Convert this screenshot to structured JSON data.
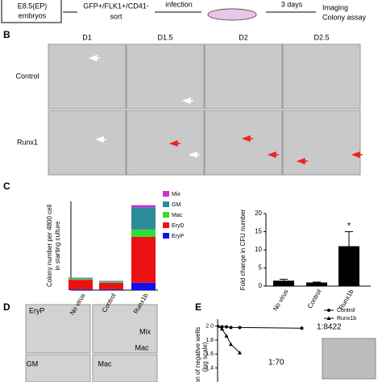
{
  "flow": {
    "source": [
      "E8.5(EP)",
      "embryos"
    ],
    "sort": [
      "GFP+/FLK1+/CD41-",
      "sort"
    ],
    "infection": "infection",
    "culture": "3 days",
    "readout": [
      "Imaging",
      "Colony assay"
    ]
  },
  "panels": {
    "b": "B",
    "c": "C",
    "d": "D",
    "e": "E"
  },
  "panel_b": {
    "columns": [
      "D1",
      "D1.5",
      "D2",
      "D2.5"
    ],
    "rows": [
      "Control",
      "Runx1"
    ]
  },
  "chart_data": [
    {
      "type": "stacked_bar",
      "ylabel": [
        "Colony number per 4800 cell",
        "in starting culture"
      ],
      "categories": [
        "No virus",
        "Control",
        "Runx1b"
      ],
      "ylim": [
        0,
        600
      ],
      "series": [
        {
          "name": "Mix",
          "color": "#cc33cc",
          "values": [
            2,
            2,
            15
          ]
        },
        {
          "name": "GM",
          "color": "#2e8b9a",
          "values": [
            5,
            5,
            150
          ]
        },
        {
          "name": "Mac",
          "color": "#33dd33",
          "values": [
            8,
            6,
            50
          ]
        },
        {
          "name": "EryD",
          "color": "#ee1111",
          "values": [
            65,
            45,
            310
          ]
        },
        {
          "name": "EryP",
          "color": "#1111ee",
          "values": [
            5,
            5,
            50
          ]
        }
      ]
    },
    {
      "type": "bar",
      "ylabel": "Fold change in CFU number",
      "categories": [
        "No virus",
        "Control",
        "Runx1b"
      ],
      "values": [
        1.5,
        1,
        11
      ],
      "errors": [
        0.4,
        0.1,
        4
      ],
      "color": "#000000",
      "ylim": [
        0,
        20
      ],
      "yticks": [
        0,
        5,
        10,
        15,
        20
      ],
      "annotation": "*"
    },
    {
      "type": "line",
      "ylabel": [
        "tion of negative wells",
        "(log scale)"
      ],
      "xlim": [
        0,
        100
      ],
      "ylim": [
        1.2,
        2.1
      ],
      "yticks": [
        {
          "value": 2,
          "label": "2.0"
        },
        {
          "value": 1.8,
          "label": "1.8"
        },
        {
          "value": 1.6,
          "label": "1.6"
        },
        {
          "value": 1.4,
          "label": "1.4"
        }
      ],
      "series": [
        {
          "name": "Control",
          "color": "#000000",
          "x": [
            0,
            5,
            10,
            15,
            25,
            95
          ],
          "values": [
            2,
            1.99,
            1.99,
            1.98,
            1.98,
            1.97
          ]
        },
        {
          "name": "Runx1b",
          "color": "#000000",
          "x": [
            0,
            5,
            10,
            15,
            25
          ],
          "values": [
            2,
            1.96,
            1.86,
            1.74,
            1.62
          ]
        }
      ],
      "annotations": [
        "1:8422",
        "1:70"
      ]
    }
  ],
  "panel_d": {
    "labels": [
      "EryP",
      "Mix",
      "Mac",
      "GM",
      "Mac"
    ]
  }
}
